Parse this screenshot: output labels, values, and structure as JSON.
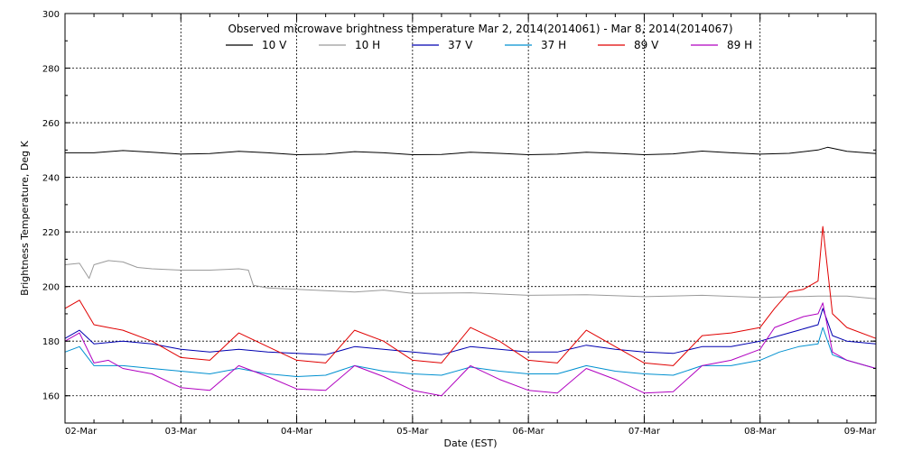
{
  "chart_data": {
    "type": "line",
    "title": "Observed microwave brightness temperature Mar  2, 2014(2014061) - Mar  8, 2014(2014067)",
    "xlabel": "Date (EST)",
    "ylabel": "Brightness Temperature, Deg K",
    "ylim": [
      150,
      300
    ],
    "yticks": [
      160,
      180,
      200,
      220,
      240,
      260,
      280,
      300
    ],
    "xlim": [
      "02-Mar",
      "09-Mar"
    ],
    "xticks": [
      "02-Mar",
      "03-Mar",
      "04-Mar",
      "05-Mar",
      "06-Mar",
      "07-Mar",
      "08-Mar",
      "09-Mar"
    ],
    "grid": true,
    "legend_position": "top",
    "series": [
      {
        "name": "10 V",
        "color": "#000000",
        "x": [
          "02-Mar 00:00",
          "02-Mar 06:00",
          "02-Mar 12:00",
          "02-Mar 18:00",
          "03-Mar 00:00",
          "03-Mar 06:00",
          "03-Mar 12:00",
          "03-Mar 18:00",
          "04-Mar 00:00",
          "04-Mar 06:00",
          "04-Mar 12:00",
          "04-Mar 18:00",
          "05-Mar 00:00",
          "05-Mar 06:00",
          "05-Mar 12:00",
          "05-Mar 18:00",
          "06-Mar 00:00",
          "06-Mar 06:00",
          "06-Mar 12:00",
          "06-Mar 18:00",
          "07-Mar 00:00",
          "07-Mar 06:00",
          "07-Mar 12:00",
          "07-Mar 18:00",
          "08-Mar 00:00",
          "08-Mar 06:00",
          "08-Mar 12:00",
          "08-Mar 14:00",
          "08-Mar 18:00",
          "09-Mar 00:00"
        ],
        "y": [
          249.0,
          249.0,
          249.8,
          249.2,
          248.5,
          248.7,
          249.5,
          249.0,
          248.3,
          248.5,
          249.4,
          249.0,
          248.3,
          248.4,
          249.2,
          248.8,
          248.3,
          248.5,
          249.2,
          248.8,
          248.3,
          248.6,
          249.6,
          249.0,
          248.5,
          248.8,
          250.0,
          251.0,
          249.5,
          248.7
        ]
      },
      {
        "name": "10 H",
        "color": "#9a9a9a",
        "x": [
          "02-Mar 00:00",
          "02-Mar 03:00",
          "02-Mar 05:00",
          "02-Mar 06:00",
          "02-Mar 09:00",
          "02-Mar 12:00",
          "02-Mar 15:00",
          "02-Mar 18:00",
          "03-Mar 00:00",
          "03-Mar 06:00",
          "03-Mar 12:00",
          "03-Mar 14:00",
          "03-Mar 15:00",
          "03-Mar 18:00",
          "04-Mar 00:00",
          "04-Mar 06:00",
          "04-Mar 12:00",
          "04-Mar 18:00",
          "05-Mar 00:00",
          "05-Mar 12:00",
          "06-Mar 00:00",
          "06-Mar 12:00",
          "07-Mar 00:00",
          "07-Mar 12:00",
          "08-Mar 00:00",
          "08-Mar 12:00",
          "08-Mar 18:00",
          "09-Mar 00:00"
        ],
        "y": [
          208.0,
          208.5,
          203.0,
          208.0,
          209.5,
          209.0,
          207.0,
          206.5,
          206.0,
          206.0,
          206.5,
          206.0,
          200.5,
          199.5,
          199.0,
          198.5,
          198.0,
          198.7,
          197.5,
          197.7,
          196.8,
          197.0,
          196.3,
          196.8,
          196.0,
          196.5,
          196.5,
          195.5
        ]
      },
      {
        "name": "37 V",
        "color": "#0000b0",
        "x": [
          "02-Mar 00:00",
          "02-Mar 03:00",
          "02-Mar 06:00",
          "02-Mar 12:00",
          "02-Mar 18:00",
          "03-Mar 00:00",
          "03-Mar 06:00",
          "03-Mar 12:00",
          "03-Mar 18:00",
          "04-Mar 00:00",
          "04-Mar 06:00",
          "04-Mar 12:00",
          "04-Mar 18:00",
          "05-Mar 00:00",
          "05-Mar 06:00",
          "05-Mar 12:00",
          "05-Mar 18:00",
          "06-Mar 00:00",
          "06-Mar 06:00",
          "06-Mar 12:00",
          "06-Mar 18:00",
          "07-Mar 00:00",
          "07-Mar 06:00",
          "07-Mar 12:00",
          "07-Mar 18:00",
          "08-Mar 00:00",
          "08-Mar 04:00",
          "08-Mar 08:00",
          "08-Mar 12:00",
          "08-Mar 13:00",
          "08-Mar 15:00",
          "08-Mar 18:00",
          "09-Mar 00:00"
        ],
        "y": [
          181.0,
          184.0,
          179.0,
          180.0,
          179.0,
          177.0,
          176.0,
          177.0,
          176.0,
          175.5,
          175.0,
          178.0,
          177.0,
          176.0,
          175.0,
          178.0,
          177.0,
          176.0,
          176.0,
          178.5,
          177.0,
          176.0,
          175.5,
          178.0,
          178.0,
          180.0,
          182.0,
          184.0,
          186.0,
          192.0,
          182.0,
          180.0,
          179.0
        ]
      },
      {
        "name": "37 H",
        "color": "#0090d0",
        "x": [
          "02-Mar 00:00",
          "02-Mar 03:00",
          "02-Mar 06:00",
          "02-Mar 12:00",
          "02-Mar 18:00",
          "03-Mar 00:00",
          "03-Mar 06:00",
          "03-Mar 12:00",
          "03-Mar 18:00",
          "04-Mar 00:00",
          "04-Mar 06:00",
          "04-Mar 12:00",
          "04-Mar 18:00",
          "05-Mar 00:00",
          "05-Mar 06:00",
          "05-Mar 12:00",
          "05-Mar 18:00",
          "06-Mar 00:00",
          "06-Mar 06:00",
          "06-Mar 12:00",
          "06-Mar 18:00",
          "07-Mar 00:00",
          "07-Mar 06:00",
          "07-Mar 12:00",
          "07-Mar 18:00",
          "08-Mar 00:00",
          "08-Mar 04:00",
          "08-Mar 08:00",
          "08-Mar 12:00",
          "08-Mar 13:00",
          "08-Mar 15:00",
          "08-Mar 18:00",
          "09-Mar 00:00"
        ],
        "y": [
          176.0,
          178.0,
          171.0,
          171.0,
          170.0,
          169.0,
          168.0,
          170.0,
          168.0,
          167.0,
          167.5,
          171.0,
          169.0,
          168.0,
          167.5,
          170.5,
          169.0,
          168.0,
          168.0,
          171.0,
          169.0,
          168.0,
          167.5,
          171.0,
          171.0,
          173.0,
          176.0,
          178.0,
          179.0,
          185.0,
          175.0,
          173.0,
          170.0
        ]
      },
      {
        "name": "89 V",
        "color": "#e00000",
        "x": [
          "02-Mar 00:00",
          "02-Mar 03:00",
          "02-Mar 06:00",
          "02-Mar 09:00",
          "02-Mar 12:00",
          "02-Mar 18:00",
          "03-Mar 00:00",
          "03-Mar 06:00",
          "03-Mar 12:00",
          "03-Mar 18:00",
          "04-Mar 00:00",
          "04-Mar 06:00",
          "04-Mar 12:00",
          "04-Mar 18:00",
          "05-Mar 00:00",
          "05-Mar 06:00",
          "05-Mar 12:00",
          "05-Mar 18:00",
          "06-Mar 00:00",
          "06-Mar 06:00",
          "06-Mar 12:00",
          "06-Mar 18:00",
          "07-Mar 00:00",
          "07-Mar 06:00",
          "07-Mar 12:00",
          "07-Mar 18:00",
          "08-Mar 00:00",
          "08-Mar 03:00",
          "08-Mar 06:00",
          "08-Mar 09:00",
          "08-Mar 12:00",
          "08-Mar 13:00",
          "08-Mar 15:00",
          "08-Mar 18:00",
          "09-Mar 00:00"
        ],
        "y": [
          192.0,
          195.0,
          186.0,
          185.0,
          184.0,
          180.0,
          174.0,
          173.0,
          183.0,
          178.0,
          173.0,
          172.0,
          184.0,
          180.0,
          173.0,
          172.0,
          185.0,
          180.0,
          173.0,
          172.0,
          184.0,
          178.0,
          172.0,
          171.0,
          182.0,
          183.0,
          185.0,
          192.0,
          198.0,
          199.0,
          202.0,
          222.0,
          190.0,
          185.0,
          181.0
        ]
      },
      {
        "name": "89 H",
        "color": "#b000c0",
        "x": [
          "02-Mar 00:00",
          "02-Mar 03:00",
          "02-Mar 06:00",
          "02-Mar 09:00",
          "02-Mar 12:00",
          "02-Mar 18:00",
          "03-Mar 00:00",
          "03-Mar 06:00",
          "03-Mar 12:00",
          "03-Mar 18:00",
          "04-Mar 00:00",
          "04-Mar 06:00",
          "04-Mar 12:00",
          "04-Mar 18:00",
          "05-Mar 00:00",
          "05-Mar 06:00",
          "05-Mar 12:00",
          "05-Mar 18:00",
          "06-Mar 00:00",
          "06-Mar 06:00",
          "06-Mar 12:00",
          "06-Mar 18:00",
          "07-Mar 00:00",
          "07-Mar 06:00",
          "07-Mar 12:00",
          "07-Mar 18:00",
          "08-Mar 00:00",
          "08-Mar 03:00",
          "08-Mar 06:00",
          "08-Mar 09:00",
          "08-Mar 12:00",
          "08-Mar 13:00",
          "08-Mar 15:00",
          "08-Mar 18:00",
          "09-Mar 00:00"
        ],
        "y": [
          180.0,
          183.0,
          172.0,
          173.0,
          170.0,
          168.0,
          163.0,
          162.0,
          171.0,
          167.0,
          162.5,
          162.0,
          171.0,
          167.0,
          162.0,
          160.0,
          171.0,
          166.0,
          162.0,
          161.0,
          170.0,
          166.0,
          161.0,
          161.5,
          171.0,
          173.0,
          177.0,
          185.0,
          187.0,
          189.0,
          190.0,
          194.0,
          176.0,
          173.0,
          170.0
        ]
      }
    ]
  }
}
